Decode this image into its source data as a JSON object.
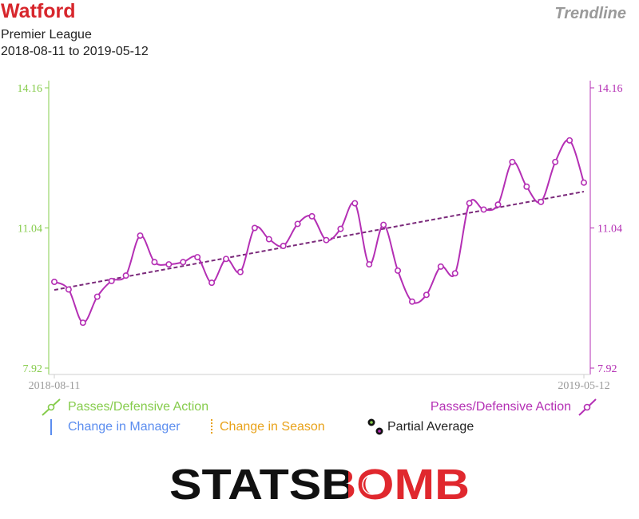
{
  "header": {
    "team": "Watford",
    "competition": "Premier League",
    "date_range": "2018-08-11 to 2019-05-12",
    "chart_kind": "Trendline"
  },
  "legend": {
    "left_series": "Passes/Defensive Action",
    "right_series": "Passes/Defensive Action",
    "manager_change": "Change in Manager",
    "season_change": "Change in Season",
    "partial_average": "Partial Average"
  },
  "branding": {
    "text": "STATSBOMB"
  },
  "colors": {
    "left_axis": "#86cc4c",
    "series": "#b42fb4",
    "trend": "#7b2a7b",
    "manager": "#5b8def",
    "season": "#e8a21a",
    "title": "#d7262c"
  },
  "chart_data": {
    "type": "line",
    "x_tick_labels": [
      "2018-08-11",
      "2019-05-12"
    ],
    "y_left": {
      "ticks": [
        7.92,
        11.04,
        14.16
      ],
      "labels": [
        "7.92",
        "11.04",
        "14.16"
      ],
      "range": [
        7.92,
        14.16
      ]
    },
    "y_right": {
      "ticks": [
        7.92,
        11.04,
        14.16
      ],
      "labels": [
        "7.92",
        "11.04",
        "14.16"
      ],
      "range": [
        7.92,
        14.16
      ]
    },
    "series": [
      {
        "name": "Passes/Defensive Action",
        "values": [
          9.84,
          9.67,
          8.93,
          9.51,
          9.86,
          9.98,
          10.87,
          10.28,
          10.23,
          10.28,
          10.39,
          9.82,
          10.35,
          10.06,
          11.04,
          10.79,
          10.64,
          11.13,
          11.3,
          10.77,
          11.02,
          11.59,
          10.23,
          11.11,
          10.09,
          9.4,
          9.55,
          10.18,
          10.03,
          11.59,
          11.45,
          11.56,
          12.51,
          11.96,
          11.62,
          12.51,
          12.99,
          12.05
        ]
      }
    ],
    "trendline": {
      "start": 9.66,
      "end": 11.85,
      "style": "dashed"
    },
    "grid": false
  }
}
